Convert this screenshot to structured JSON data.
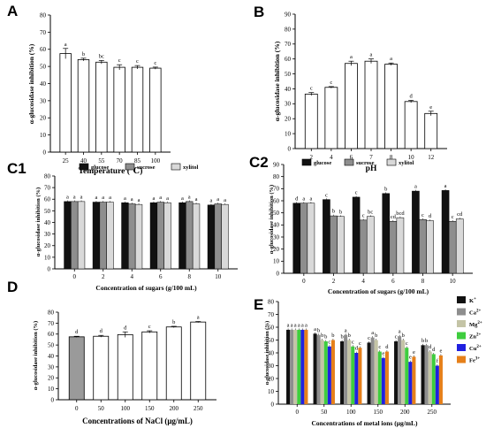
{
  "chart_data": [
    {
      "panel": "A",
      "type": "bar",
      "categories": [
        "25",
        "40",
        "55",
        "70",
        "85",
        "100"
      ],
      "values": [
        57.5,
        54,
        52.5,
        49.5,
        49.5,
        49
      ],
      "errors": [
        3,
        0.8,
        1,
        1.5,
        1,
        0.6
      ],
      "letters": [
        "a",
        "b",
        "bc",
        "c",
        "c",
        "c"
      ],
      "xlabel": "Temperature (℃)",
      "ylabel": "α-glucosidase inhibition (%)",
      "ylim": [
        0,
        80
      ],
      "yticks": [
        0,
        10,
        20,
        30,
        40,
        50,
        60,
        70,
        80
      ]
    },
    {
      "panel": "B",
      "type": "bar",
      "categories": [
        "2",
        "4",
        "6",
        "7",
        "8",
        "10",
        "12"
      ],
      "values": [
        36.5,
        41,
        57,
        58.5,
        56.5,
        31.5,
        23.5
      ],
      "errors": [
        1,
        0.5,
        1.5,
        1.5,
        0.8,
        0.8,
        1.5
      ],
      "letters": [
        "c",
        "c",
        "a",
        "a",
        "a",
        "d",
        "e"
      ],
      "xlabel": "pH",
      "ylabel": "α-glucosidase inhibition (%)",
      "ylim": [
        0,
        90
      ],
      "yticks": [
        0,
        10,
        20,
        30,
        40,
        50,
        60,
        70,
        80,
        90
      ]
    },
    {
      "panel": "C1",
      "type": "bar",
      "categories": [
        "0",
        "2",
        "4",
        "6",
        "8",
        "10"
      ],
      "series": [
        {
          "name": "glucose",
          "values": [
            58,
            57.5,
            57,
            57,
            57,
            55
          ],
          "letters": [
            "a",
            "a",
            "a",
            "a",
            "a",
            "a"
          ]
        },
        {
          "name": "sucrose",
          "values": [
            58,
            57.5,
            56,
            57.5,
            58,
            56
          ],
          "letters": [
            "a",
            "a",
            "a",
            "a",
            "a",
            "a"
          ]
        },
        {
          "name": "xylitol",
          "values": [
            58,
            57.5,
            55.5,
            57,
            56,
            55.5
          ],
          "letters": [
            "a",
            "a",
            "a",
            "a",
            "a",
            "a"
          ]
        }
      ],
      "xlabel": "Concentration of sugars  (g/100 mL)",
      "ylabel": "α-glucosidase inhibition (%)",
      "ylim": [
        0,
        80
      ],
      "yticks": [
        0,
        10,
        20,
        30,
        40,
        50,
        60,
        70,
        80
      ]
    },
    {
      "panel": "C2",
      "type": "bar",
      "categories": [
        "0",
        "2",
        "4",
        "6",
        "8",
        "10"
      ],
      "series": [
        {
          "name": "glucose",
          "values": [
            58,
            61,
            63,
            66,
            68,
            68.5
          ],
          "letters": [
            "d",
            "c",
            "c",
            "b",
            "a",
            "a"
          ]
        },
        {
          "name": "sucrose",
          "values": [
            58,
            47.5,
            44,
            43,
            44.5,
            43
          ],
          "letters": [
            "a",
            "b",
            "c",
            "cd",
            "c",
            "c"
          ]
        },
        {
          "name": "xylitol",
          "values": [
            58,
            47,
            47,
            46,
            43.5,
            45
          ],
          "letters": [
            "a",
            "b",
            "bc",
            "bcd",
            "d",
            "cd"
          ]
        }
      ],
      "xlabel": "Concentration of sugars (g/100 mL)",
      "ylabel": "α-glucosidase inhibition (%)",
      "ylim": [
        0,
        90
      ],
      "yticks": [
        0,
        10,
        20,
        30,
        40,
        50,
        60,
        70,
        80,
        90
      ]
    },
    {
      "panel": "D",
      "type": "bar",
      "categories": [
        "0",
        "50",
        "100",
        "150",
        "200",
        "250"
      ],
      "values": [
        57.5,
        58,
        59.5,
        62,
        66.5,
        71
      ],
      "errors": [
        0.5,
        0.8,
        2.5,
        1,
        0.6,
        0.5
      ],
      "letters": [
        "d",
        "d",
        "d",
        "c",
        "b",
        "a"
      ],
      "xlabel": "Concentrations of NaCl (μg/mL)",
      "ylabel": "α-glucosidase inhibition (%)",
      "ylim": [
        0,
        80
      ],
      "yticks": [
        0,
        10,
        20,
        30,
        40,
        50,
        60,
        70,
        80
      ]
    },
    {
      "panel": "E",
      "type": "bar",
      "categories": [
        "0",
        "50",
        "100",
        "150",
        "200",
        "250"
      ],
      "series": [
        {
          "name": "K",
          "sup": "+",
          "color": "#111111",
          "values": [
            58,
            55,
            49,
            48,
            49,
            46
          ],
          "letters": [
            "a",
            "a",
            "b",
            "c",
            "c",
            "b"
          ]
        },
        {
          "name": "Ca",
          "sup": "2+",
          "color": "#8e8e8e",
          "values": [
            58,
            54,
            54,
            52,
            53,
            46
          ],
          "letters": [
            "a",
            "b",
            "a",
            "a",
            "a",
            "b"
          ]
        },
        {
          "name": "Mg",
          "sup": "2+",
          "color": "#c4c4a6",
          "values": [
            58,
            50,
            50,
            50,
            50,
            41
          ],
          "letters": [
            "a",
            "b",
            "b",
            "b",
            "b",
            "d"
          ]
        },
        {
          "name": "Zn",
          "sup": "2+",
          "color": "#3ecd3e",
          "values": [
            58,
            49,
            45,
            41,
            44,
            39
          ],
          "letters": [
            "a",
            "b",
            "c",
            "c",
            "c",
            "d"
          ]
        },
        {
          "name": "Cu",
          "sup": "2+",
          "color": "#2020e0",
          "values": [
            58,
            45,
            40,
            36,
            33,
            30
          ],
          "letters": [
            "a",
            "c",
            "d",
            "e",
            "e",
            "f"
          ]
        },
        {
          "name": "Fe",
          "sup": "3+",
          "color": "#e6801a",
          "values": [
            58,
            50,
            44,
            41,
            37,
            38
          ],
          "letters": [
            "a",
            "b",
            "c",
            "d",
            "e",
            "e"
          ]
        }
      ],
      "xlabel": "Concentrations of metal ions (μg/mL)",
      "ylabel": "α-glucosidase inhibition (%)",
      "ylim": [
        0,
        80
      ],
      "yticks": [
        0,
        10,
        20,
        30,
        40,
        50,
        60,
        70,
        80
      ]
    }
  ]
}
